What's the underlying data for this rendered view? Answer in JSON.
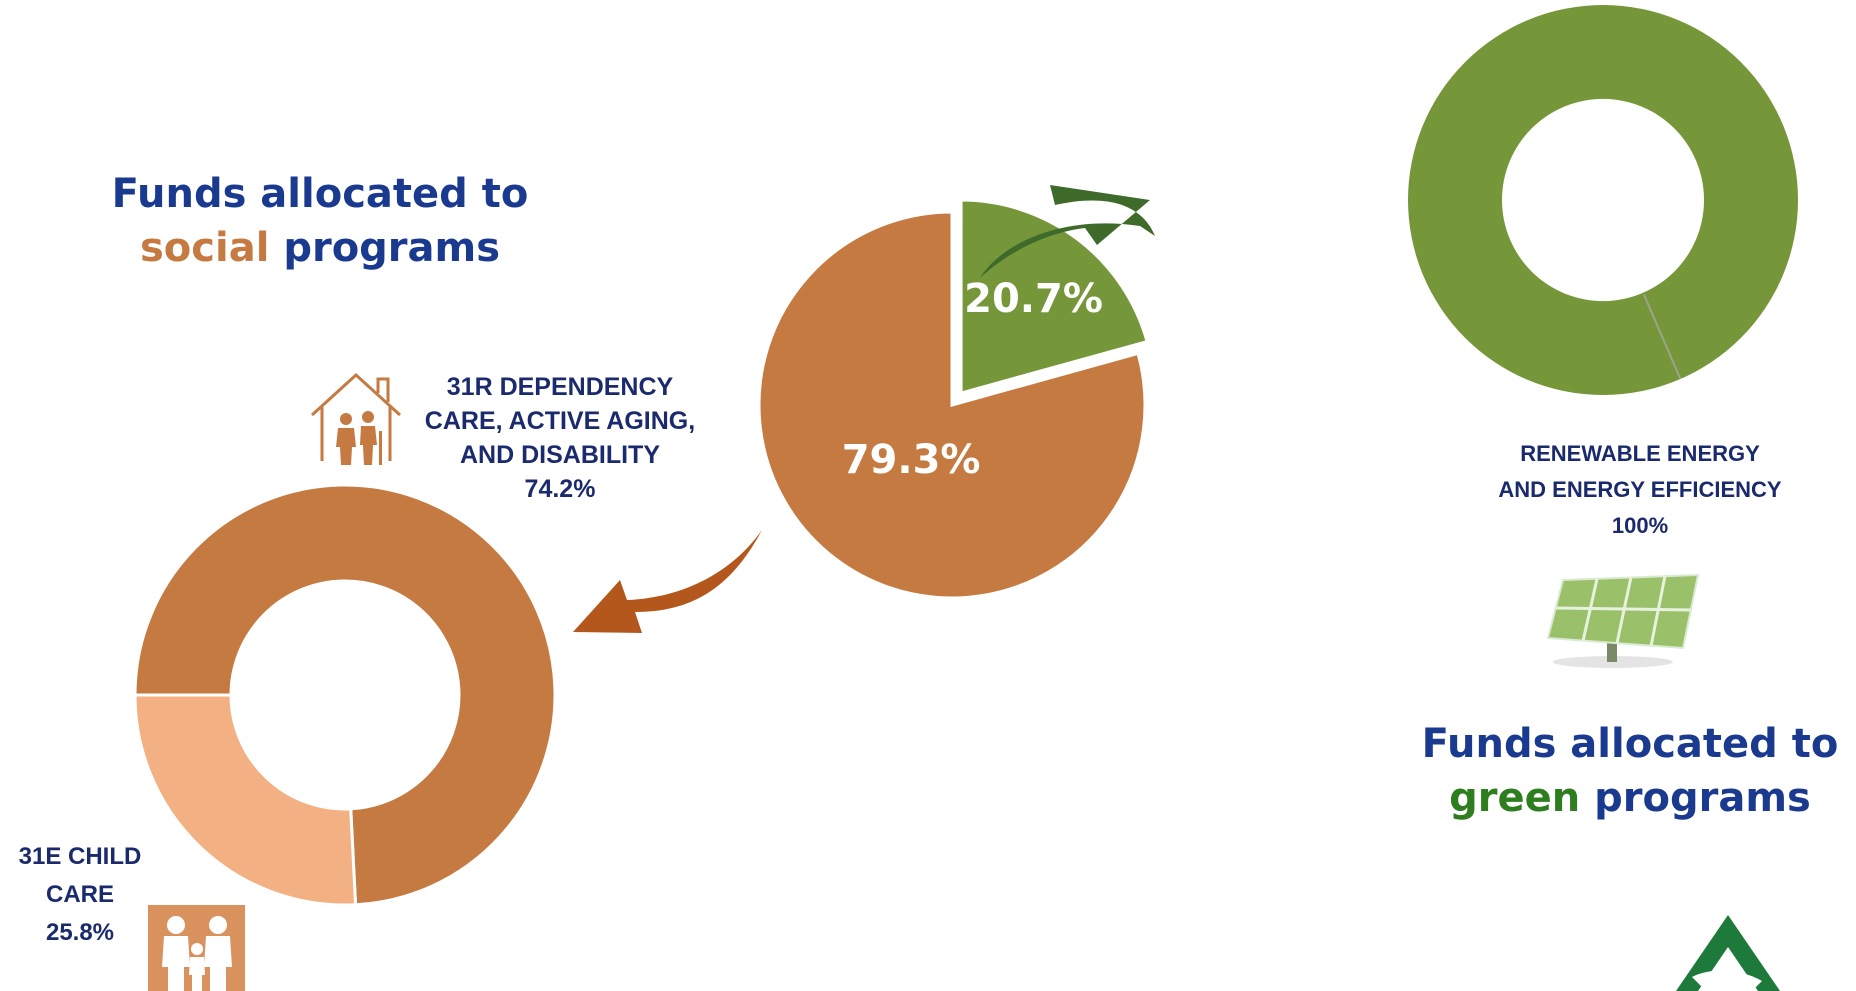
{
  "titles": {
    "social": {
      "line1": "Funds allocated to",
      "highlight": "social",
      "rest": " programs"
    },
    "green": {
      "line1": "Funds allocated to",
      "highlight": "green",
      "rest": " programs"
    }
  },
  "colors": {
    "title_blue": "#1a3a8f",
    "social_orange": "#c47a40",
    "light_orange": "#f2b083",
    "green": "#76963a",
    "dark_green": "#3e6b2a",
    "arrow_orange": "#b3571c"
  },
  "labels": {
    "dependency": {
      "line1": "31R DEPENDENCY",
      "line2": "CARE, ACTIVE AGING,",
      "line3": "AND DISABILITY",
      "value": "74.2%"
    },
    "childcare": {
      "line1": "31E CHILD",
      "line2": "CARE",
      "value": "25.8%"
    },
    "renewable": {
      "line1": "RENEWABLE ENERGY",
      "line2": "AND ENERGY EFFICIENCY",
      "value": "100%"
    }
  },
  "icons": [
    "house-elderly-icon",
    "family-icon",
    "solar-panel-icon",
    "andalucia-logo"
  ],
  "chart_data": [
    {
      "type": "pie",
      "categories": [
        "green programs",
        "social programs"
      ],
      "values": [
        20.7,
        79.3
      ],
      "data_labels": [
        "20.7%",
        "79.3%"
      ],
      "colors": [
        "#76963a",
        "#c47a40"
      ],
      "exploded": "green programs"
    },
    {
      "type": "pie",
      "style": "donut",
      "categories": [
        "31R DEPENDENCY CARE, ACTIVE AGING, AND DISABILITY",
        "31E CHILD CARE"
      ],
      "values": [
        74.2,
        25.8
      ],
      "colors": [
        "#c47a40",
        "#f2b083"
      ]
    },
    {
      "type": "pie",
      "style": "donut",
      "categories": [
        "RENEWABLE ENERGY AND ENERGY EFFICIENCY"
      ],
      "values": [
        100
      ],
      "colors": [
        "#76963a"
      ]
    }
  ]
}
